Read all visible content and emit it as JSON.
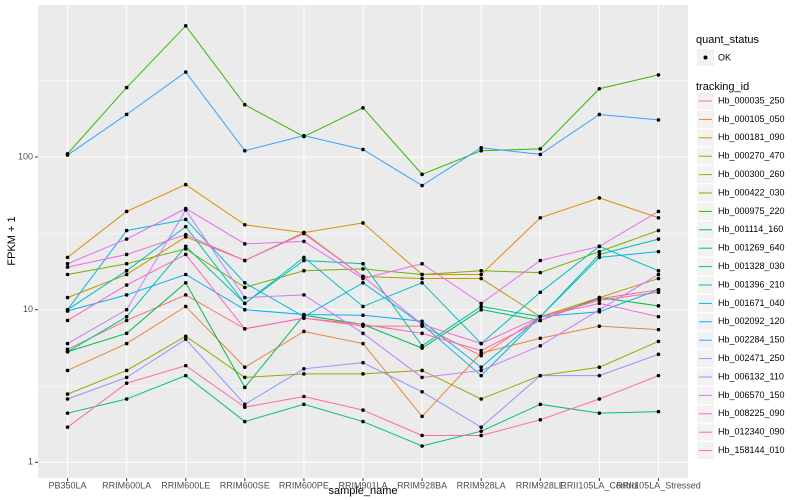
{
  "chart_data": {
    "type": "line",
    "x_label": "sample_name",
    "y_label": "FPKM + 1",
    "log_y": true,
    "grid": true,
    "status_legend": {
      "title": "quant_status",
      "label": "OK"
    },
    "legend_title": "tracking_id",
    "categories": [
      "PB350LA",
      "RRIM600LA",
      "RRIM600LE",
      "RRIM600SE",
      "RRIM600PE",
      "RRIM901LA",
      "RRIM928BA",
      "RRIM928LA",
      "RRIM928LE",
      "RRII105LA_Control",
      "RRII105LA_Stressed"
    ],
    "ylim": [
      0.79,
      990
    ],
    "yticks": [
      1,
      10,
      100
    ],
    "series": [
      {
        "name": "Hb_000035_250",
        "color": "#F8766D",
        "values": [
          5.5,
          8.5,
          12.5,
          7.5,
          8.8,
          7.8,
          7.8,
          5,
          9,
          11.5,
          13
        ]
      },
      {
        "name": "Hb_000105_050",
        "color": "#EA8331",
        "values": [
          4,
          6,
          10.5,
          4.2,
          7.2,
          6,
          2,
          5.2,
          6.5,
          7.8,
          7.4
        ]
      },
      {
        "name": "Hb_000181_090",
        "color": "#D89000",
        "values": [
          22,
          44,
          66,
          36,
          32,
          37,
          17,
          17,
          40,
          54,
          40
        ]
      },
      {
        "name": "Hb_000270_470",
        "color": "#C09B00",
        "values": [
          12,
          17,
          30,
          21,
          32,
          16.5,
          16,
          16,
          9,
          12,
          16
        ]
      },
      {
        "name": "Hb_000300_260",
        "color": "#A3A500",
        "values": [
          2.8,
          4,
          6.7,
          3.6,
          3.8,
          3.8,
          4,
          2.6,
          3.7,
          4.2,
          6.2
        ]
      },
      {
        "name": "Hb_000422_030",
        "color": "#7CAE00",
        "values": [
          17,
          20,
          25,
          14,
          18,
          18.5,
          17,
          18,
          17.5,
          24,
          33
        ]
      },
      {
        "name": "Hb_000975_220",
        "color": "#39B600",
        "values": [
          105,
          285,
          723,
          220,
          136,
          210,
          77,
          110,
          113,
          280,
          345
        ]
      },
      {
        "name": "Hb_001114_160",
        "color": "#00BB4E",
        "values": [
          5.3,
          7,
          15,
          3.1,
          9.2,
          8,
          5.6,
          10,
          8.5,
          12,
          10.6
        ]
      },
      {
        "name": "Hb_001269_640",
        "color": "#00BF7D",
        "values": [
          2.1,
          2.6,
          3.7,
          1.85,
          2.4,
          1.85,
          1.28,
          1.6,
          2.4,
          2.1,
          2.15
        ]
      },
      {
        "name": "Hb_001328_030",
        "color": "#00C1A3",
        "values": [
          5.3,
          9,
          26,
          11,
          21,
          20,
          5.8,
          10.5,
          9,
          23,
          29
        ]
      },
      {
        "name": "Hb_001396_210",
        "color": "#00BFC4",
        "values": [
          10,
          18,
          35,
          11,
          22,
          10.5,
          15,
          6,
          13,
          26,
          18
        ]
      },
      {
        "name": "Hb_001671_040",
        "color": "#00BAE0",
        "values": [
          10,
          33,
          39,
          15,
          9,
          15,
          8,
          3.7,
          9,
          22,
          24
        ]
      },
      {
        "name": "Hb_002092_120",
        "color": "#00B0F6",
        "values": [
          9.8,
          12.5,
          17,
          10,
          9.3,
          9.2,
          8.4,
          4.2,
          9,
          9.7,
          13.5
        ]
      },
      {
        "name": "Hb_002284_150",
        "color": "#35A2FF",
        "values": [
          103,
          190,
          360,
          110,
          138,
          112,
          65,
          115,
          104,
          190,
          175
        ]
      },
      {
        "name": "Hb_002471_250",
        "color": "#9590FF",
        "values": [
          2.6,
          3.6,
          6.4,
          2.4,
          4.1,
          4.5,
          2.9,
          1.7,
          3.7,
          3.7,
          5.1
        ]
      },
      {
        "name": "Hb_006132_110",
        "color": "#C77CFF",
        "values": [
          6,
          10,
          45,
          12,
          12.5,
          7,
          3.6,
          4,
          5.8,
          10,
          17
        ]
      },
      {
        "name": "Hb_006570_150",
        "color": "#E76BF3",
        "values": [
          20,
          29,
          46,
          27,
          28,
          16,
          20,
          11,
          21,
          26,
          44
        ]
      },
      {
        "name": "Hb_008225_090",
        "color": "#FA62DB",
        "values": [
          19,
          23,
          31,
          21,
          31.5,
          16.5,
          8,
          6,
          9,
          11,
          9
        ]
      },
      {
        "name": "Hb_012340_090",
        "color": "#FF62BC",
        "values": [
          8.5,
          14.5,
          23,
          7.5,
          8.8,
          8,
          7,
          5.4,
          8.5,
          11.8,
          13.5
        ]
      },
      {
        "name": "Hb_158144_010",
        "color": "#FF6C91",
        "values": [
          1.7,
          3.3,
          4.3,
          2.3,
          2.7,
          2.2,
          1.5,
          1.5,
          1.9,
          2.6,
          3.7
        ]
      }
    ]
  }
}
